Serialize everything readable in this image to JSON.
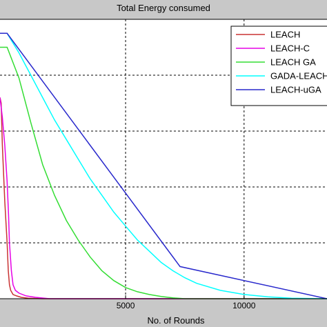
{
  "chart_data": {
    "type": "line",
    "title": "Total Energy consumed",
    "xlabel": "No. of Rounds",
    "ylabel": "",
    "xlim": [
      -300,
      13500
    ],
    "ylim": [
      0,
      100
    ],
    "x_ticks": [
      5000,
      10000
    ],
    "grid": true,
    "legend_position": "top-right",
    "series": [
      {
        "name": "LEACH",
        "color": "#c83232",
        "points": [
          [
            -300,
            72
          ],
          [
            -250,
            70
          ],
          [
            -200,
            55
          ],
          [
            -100,
            35
          ],
          [
            0,
            20
          ],
          [
            50,
            10
          ],
          [
            100,
            5
          ],
          [
            150,
            3
          ],
          [
            250,
            1.5
          ],
          [
            400,
            1
          ],
          [
            600,
            0.5
          ],
          [
            900,
            0.2
          ],
          [
            1500,
            0
          ],
          [
            13500,
            0
          ]
        ]
      },
      {
        "name": "LEACH-C",
        "color": "#e600e6",
        "points": [
          [
            -300,
            72
          ],
          [
            -200,
            65
          ],
          [
            -100,
            55
          ],
          [
            0,
            42
          ],
          [
            60,
            30
          ],
          [
            100,
            20
          ],
          [
            180,
            10
          ],
          [
            250,
            5
          ],
          [
            350,
            3
          ],
          [
            500,
            2
          ],
          [
            800,
            1
          ],
          [
            1200,
            0.5
          ],
          [
            1800,
            0
          ],
          [
            13500,
            0
          ]
        ]
      },
      {
        "name": "LEACH GA",
        "color": "#33dd33",
        "points": [
          [
            -300,
            90
          ],
          [
            0,
            90
          ],
          [
            500,
            79
          ],
          [
            1000,
            63
          ],
          [
            1500,
            48
          ],
          [
            2000,
            37
          ],
          [
            2500,
            28
          ],
          [
            3000,
            21
          ],
          [
            3500,
            15
          ],
          [
            4000,
            10
          ],
          [
            4500,
            6.5
          ],
          [
            5000,
            4
          ],
          [
            5500,
            2.5
          ],
          [
            6000,
            1.5
          ],
          [
            6500,
            0.8
          ],
          [
            7000,
            0.3
          ],
          [
            7500,
            0
          ],
          [
            13500,
            0
          ]
        ]
      },
      {
        "name": "GADA-LEACH",
        "color": "#00ffff",
        "points": [
          [
            -300,
            95
          ],
          [
            0,
            95
          ],
          [
            500,
            88
          ],
          [
            1000,
            80
          ],
          [
            1500,
            72
          ],
          [
            2000,
            64
          ],
          [
            2500,
            57
          ],
          [
            3000,
            50
          ],
          [
            3500,
            43
          ],
          [
            4000,
            37
          ],
          [
            4500,
            31
          ],
          [
            5000,
            26
          ],
          [
            5500,
            21
          ],
          [
            6000,
            17
          ],
          [
            6500,
            13
          ],
          [
            7000,
            10
          ],
          [
            7500,
            7.5
          ],
          [
            8000,
            5.5
          ],
          [
            9000,
            3
          ],
          [
            10000,
            1.5
          ],
          [
            11000,
            0.7
          ],
          [
            12000,
            0.2
          ],
          [
            13500,
            0
          ]
        ]
      },
      {
        "name": "LEACH-uGA",
        "color": "#2828cc",
        "points": [
          [
            -300,
            95
          ],
          [
            0,
            95
          ],
          [
            7300,
            11.5
          ],
          [
            13500,
            0
          ]
        ]
      }
    ]
  }
}
